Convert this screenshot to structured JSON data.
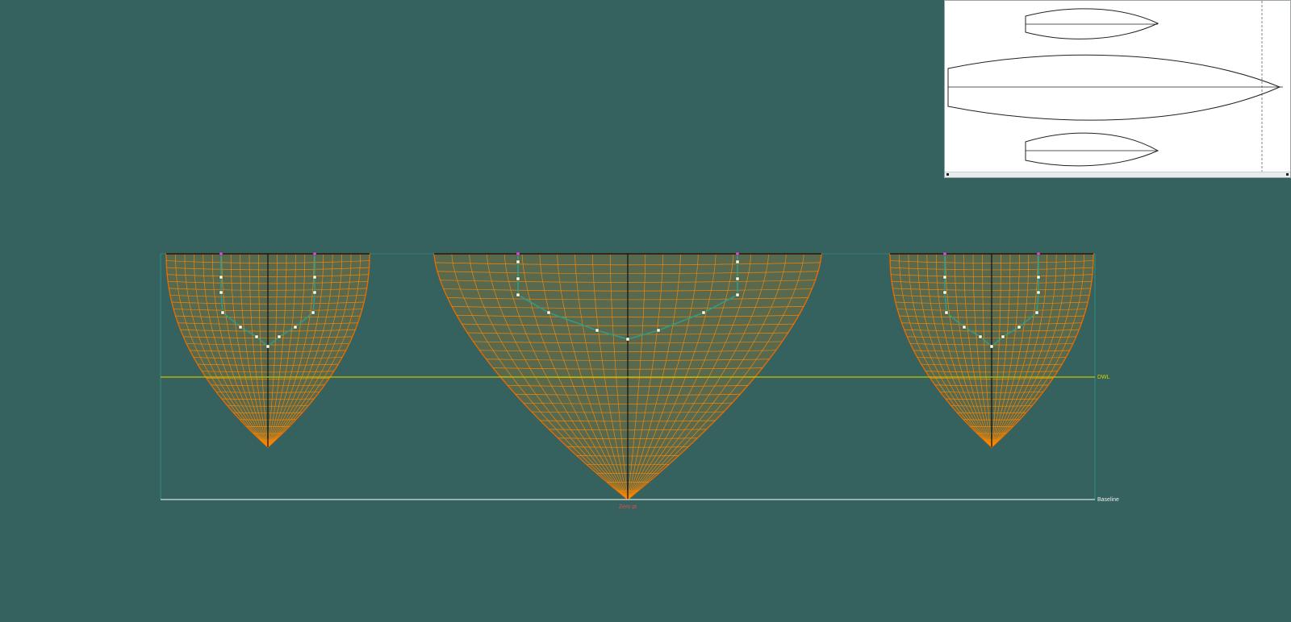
{
  "reference_lines": {
    "dwl": "DWL",
    "baseline": "Baseline",
    "zero": "Zero pt"
  },
  "colors": {
    "background": "#35625e",
    "mesh": "#ff8a00",
    "mesh_edge": "#e46a00",
    "dwl_line": "#c6c400",
    "baseline_line": "#d8dede",
    "zero_label": "#e24b4b",
    "boundary": "#2d9c8c",
    "deck": "#141414",
    "control_point": "#ffffdd",
    "control_point_alt": "#d050d0",
    "plan_background": "#ffffff",
    "plan_outline": "#222222"
  },
  "views": {
    "body_plan": "body-plan-view",
    "plan": "plan-view"
  }
}
